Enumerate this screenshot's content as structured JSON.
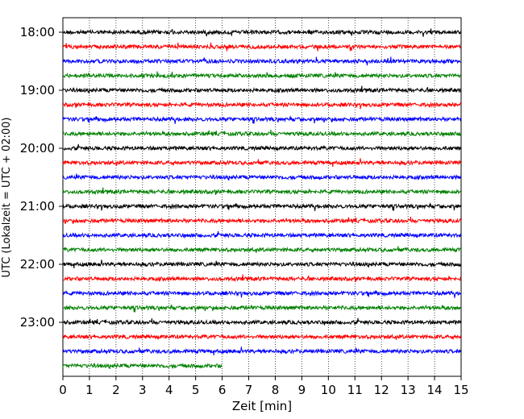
{
  "chart_data": {
    "type": "line",
    "title": "",
    "xlabel": "Zeit  [min]",
    "ylabel": "UTC (Lokalzeit = UTC + 02:00)",
    "xlim": [
      0,
      15
    ],
    "x_ticks": [
      "0",
      "1",
      "2",
      "3",
      "4",
      "5",
      "6",
      "7",
      "8",
      "9",
      "10",
      "11",
      "12",
      "13",
      "14",
      "15"
    ],
    "y_ticks": [
      "18:00",
      "19:00",
      "20:00",
      "21:00",
      "22:00",
      "23:00"
    ],
    "grid": "vertical dotted at each minute",
    "trace_minutes": 15,
    "traces": [
      {
        "start": "18:00",
        "color": "#000000",
        "end_min": 15
      },
      {
        "start": "18:15",
        "color": "#ff0000",
        "end_min": 15
      },
      {
        "start": "18:30",
        "color": "#0000ff",
        "end_min": 15
      },
      {
        "start": "18:45",
        "color": "#008000",
        "end_min": 15
      },
      {
        "start": "19:00",
        "color": "#000000",
        "end_min": 15
      },
      {
        "start": "19:15",
        "color": "#ff0000",
        "end_min": 15
      },
      {
        "start": "19:30",
        "color": "#0000ff",
        "end_min": 15
      },
      {
        "start": "19:45",
        "color": "#008000",
        "end_min": 15
      },
      {
        "start": "20:00",
        "color": "#000000",
        "end_min": 15
      },
      {
        "start": "20:15",
        "color": "#ff0000",
        "end_min": 15
      },
      {
        "start": "20:30",
        "color": "#0000ff",
        "end_min": 15
      },
      {
        "start": "20:45",
        "color": "#008000",
        "end_min": 15
      },
      {
        "start": "21:00",
        "color": "#000000",
        "end_min": 15
      },
      {
        "start": "21:15",
        "color": "#ff0000",
        "end_min": 15
      },
      {
        "start": "21:30",
        "color": "#0000ff",
        "end_min": 15
      },
      {
        "start": "21:45",
        "color": "#008000",
        "end_min": 15
      },
      {
        "start": "22:00",
        "color": "#000000",
        "end_min": 15
      },
      {
        "start": "22:15",
        "color": "#ff0000",
        "end_min": 15
      },
      {
        "start": "22:30",
        "color": "#0000ff",
        "end_min": 15
      },
      {
        "start": "22:45",
        "color": "#008000",
        "end_min": 15
      },
      {
        "start": "23:00",
        "color": "#000000",
        "end_min": 15
      },
      {
        "start": "23:15",
        "color": "#ff0000",
        "end_min": 15
      },
      {
        "start": "23:30",
        "color": "#0000ff",
        "end_min": 15
      },
      {
        "start": "23:45",
        "color": "#008000",
        "end_min": 6
      }
    ]
  }
}
